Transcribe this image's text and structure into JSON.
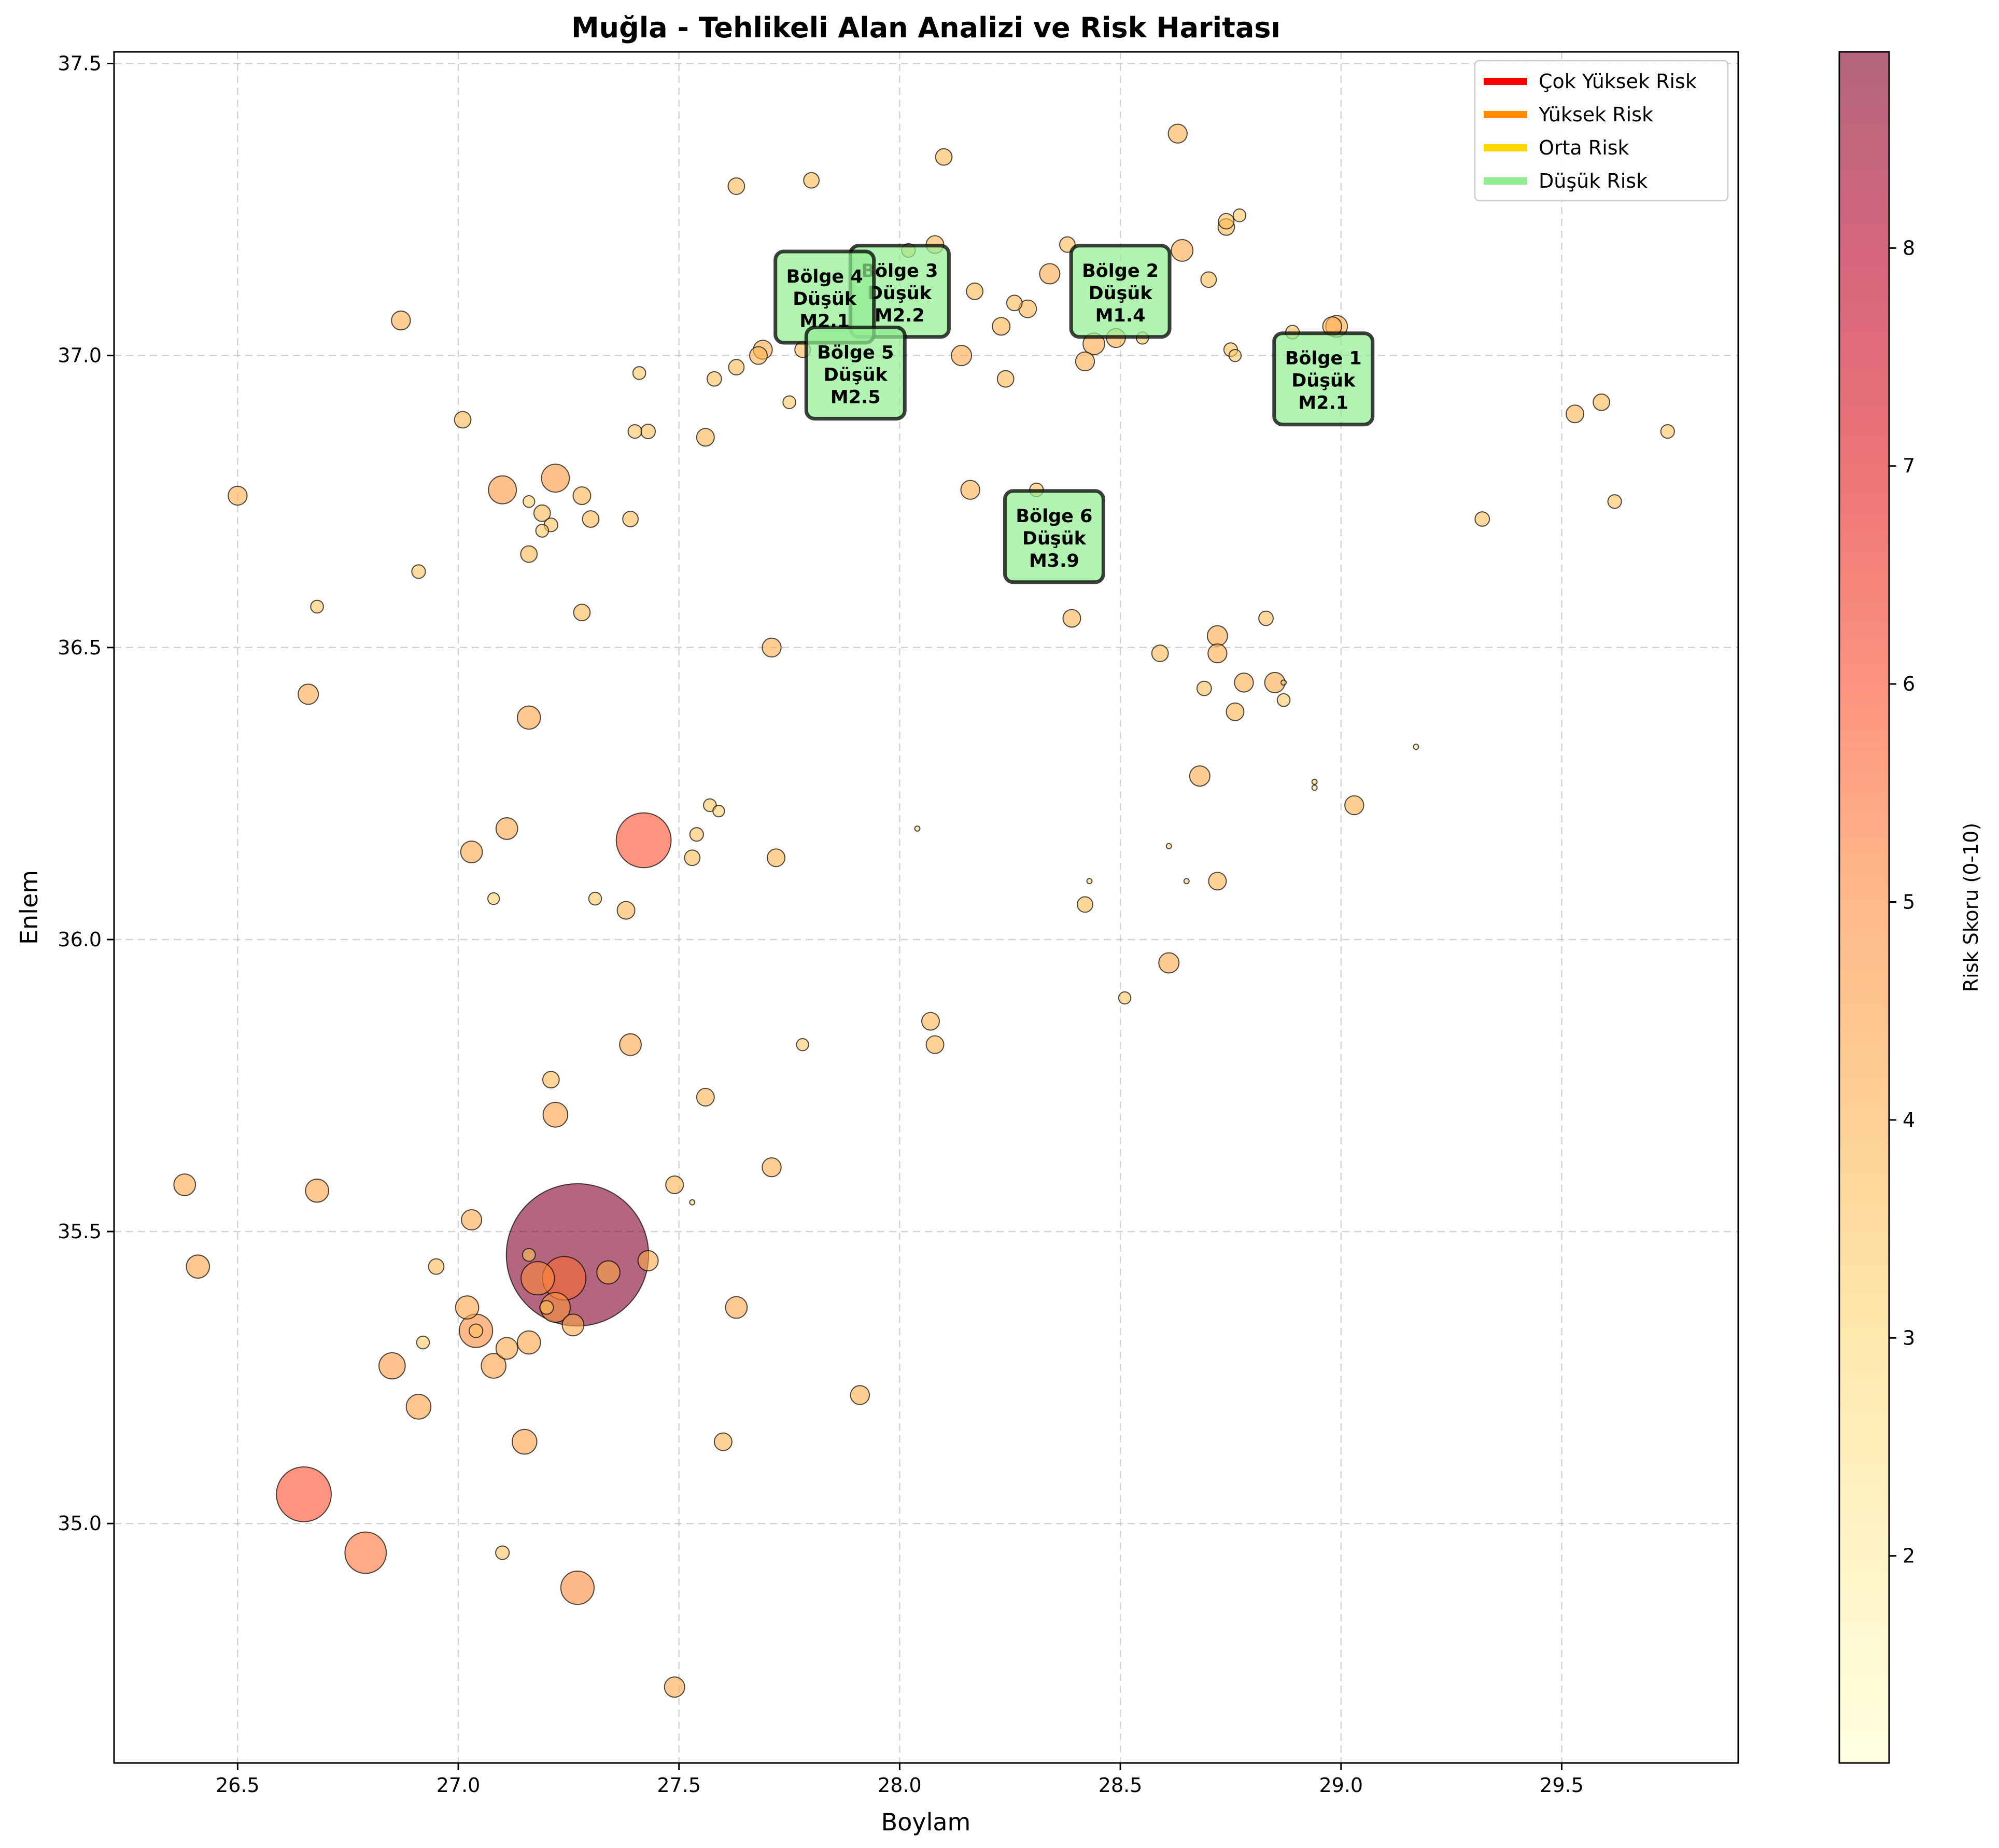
{
  "chart_data": {
    "type": "scatter",
    "title": "Muğla - Tehlikeli Alan Analizi ve Risk Haritası",
    "xlabel": "Boylam",
    "ylabel": "Enlem",
    "xlim": [
      26.22,
      29.9
    ],
    "ylim": [
      34.59,
      37.52
    ],
    "xticks": [
      26.5,
      27.0,
      27.5,
      28.0,
      28.5,
      29.0,
      29.5
    ],
    "xtick_labels": [
      "26.5",
      "27.0",
      "27.5",
      "28.0",
      "28.5",
      "29.0",
      "29.5"
    ],
    "yticks": [
      35.0,
      35.5,
      36.0,
      36.5,
      37.0,
      37.5
    ],
    "ytick_labels": [
      "35.0",
      "35.5",
      "36.0",
      "36.5",
      "37.0",
      "37.5"
    ],
    "grid": true,
    "point_size_encodes": "risk",
    "legend": {
      "position": "top-right",
      "entries": [
        {
          "label": "Çok Yüksek Risk",
          "color": "#ff0000"
        },
        {
          "label": "Yüksek Risk",
          "color": "#ff8c00"
        },
        {
          "label": "Orta Risk",
          "color": "#ffd700"
        },
        {
          "label": "Düşük Risk",
          "color": "#90ee90"
        }
      ]
    },
    "colorbar": {
      "label": "Risk Skoru (0-10)",
      "min": 1.05,
      "max": 8.9,
      "ticks": [
        2,
        3,
        4,
        5,
        6,
        7,
        8
      ],
      "tick_labels": [
        "2",
        "3",
        "4",
        "5",
        "6",
        "7",
        "8"
      ],
      "colormap": "YlOrRd"
    },
    "zones": [
      {
        "lines": [
          "Bölge 1",
          "Düşük",
          "M2.1"
        ],
        "x": 28.96,
        "y": 36.96
      },
      {
        "lines": [
          "Bölge 2",
          "Düşük",
          "M1.4"
        ],
        "x": 28.5,
        "y": 37.11
      },
      {
        "lines": [
          "Bölge 3",
          "Düşük",
          "M2.2"
        ],
        "x": 28.0,
        "y": 37.11
      },
      {
        "lines": [
          "Bölge 4",
          "Düşük",
          "M2.1"
        ],
        "x": 27.83,
        "y": 37.1
      },
      {
        "lines": [
          "Bölge 5",
          "Düşük",
          "M2.5"
        ],
        "x": 27.9,
        "y": 36.97
      },
      {
        "lines": [
          "Bölge 6",
          "Düşük",
          "M3.9"
        ],
        "x": 28.35,
        "y": 36.69
      }
    ],
    "points": [
      {
        "x": 27.27,
        "y": 35.46,
        "risk": 8.9
      },
      {
        "x": 27.42,
        "y": 36.17,
        "risk": 6.0
      },
      {
        "x": 26.65,
        "y": 35.05,
        "risk": 6.0
      },
      {
        "x": 27.24,
        "y": 35.42,
        "risk": 5.5
      },
      {
        "x": 26.79,
        "y": 34.95,
        "risk": 5.4
      },
      {
        "x": 27.04,
        "y": 35.33,
        "risk": 5.0
      },
      {
        "x": 27.18,
        "y": 35.42,
        "risk": 5.0
      },
      {
        "x": 27.27,
        "y": 34.89,
        "risk": 5.0
      },
      {
        "x": 27.1,
        "y": 36.77,
        "risk": 4.7
      },
      {
        "x": 27.22,
        "y": 35.37,
        "risk": 4.8
      },
      {
        "x": 27.22,
        "y": 36.79,
        "risk": 4.7
      },
      {
        "x": 27.15,
        "y": 35.14,
        "risk": 4.5
      },
      {
        "x": 26.91,
        "y": 35.2,
        "risk": 4.5
      },
      {
        "x": 26.85,
        "y": 35.27,
        "risk": 4.6
      },
      {
        "x": 27.16,
        "y": 35.31,
        "risk": 4.4
      },
      {
        "x": 27.11,
        "y": 35.3,
        "risk": 4.3
      },
      {
        "x": 27.08,
        "y": 35.27,
        "risk": 4.5
      },
      {
        "x": 27.26,
        "y": 35.34,
        "risk": 4.3
      },
      {
        "x": 27.34,
        "y": 35.43,
        "risk": 4.4
      },
      {
        "x": 27.02,
        "y": 35.37,
        "risk": 4.4
      },
      {
        "x": 27.22,
        "y": 35.7,
        "risk": 4.5
      },
      {
        "x": 26.41,
        "y": 35.44,
        "risk": 4.4
      },
      {
        "x": 26.68,
        "y": 35.57,
        "risk": 4.4
      },
      {
        "x": 26.38,
        "y": 35.58,
        "risk": 4.3
      },
      {
        "x": 27.03,
        "y": 35.52,
        "risk": 4.2
      },
      {
        "x": 27.43,
        "y": 35.45,
        "risk": 4.2
      },
      {
        "x": 27.63,
        "y": 35.37,
        "risk": 4.3
      },
      {
        "x": 27.49,
        "y": 34.72,
        "risk": 4.2
      },
      {
        "x": 27.6,
        "y": 35.14,
        "risk": 4.0
      },
      {
        "x": 27.91,
        "y": 35.22,
        "risk": 4.1
      },
      {
        "x": 27.16,
        "y": 36.38,
        "risk": 4.4
      },
      {
        "x": 27.39,
        "y": 35.82,
        "risk": 4.3
      },
      {
        "x": 27.56,
        "y": 35.73,
        "risk": 4.0
      },
      {
        "x": 27.49,
        "y": 35.58,
        "risk": 4.0
      },
      {
        "x": 27.71,
        "y": 35.61,
        "risk": 4.1
      },
      {
        "x": 28.08,
        "y": 35.82,
        "risk": 4.0
      },
      {
        "x": 28.07,
        "y": 35.86,
        "risk": 4.0
      },
      {
        "x": 28.61,
        "y": 35.96,
        "risk": 4.2
      },
      {
        "x": 28.51,
        "y": 35.9,
        "risk": 3.4
      },
      {
        "x": 27.21,
        "y": 35.76,
        "risk": 3.9
      },
      {
        "x": 27.2,
        "y": 35.37,
        "risk": 3.6
      },
      {
        "x": 26.95,
        "y": 35.44,
        "risk": 3.8
      },
      {
        "x": 26.92,
        "y": 35.31,
        "risk": 3.5
      },
      {
        "x": 27.04,
        "y": 35.33,
        "risk": 3.6
      },
      {
        "x": 27.16,
        "y": 35.46,
        "risk": 3.5
      },
      {
        "x": 27.53,
        "y": 35.55,
        "risk": 3.2
      },
      {
        "x": 27.1,
        "y": 34.95,
        "risk": 3.6
      },
      {
        "x": 27.78,
        "y": 35.82,
        "risk": 3.4
      },
      {
        "x": 26.91,
        "y": 36.63,
        "risk": 3.6
      },
      {
        "x": 27.16,
        "y": 36.75,
        "risk": 3.3
      },
      {
        "x": 26.68,
        "y": 36.57,
        "risk": 3.5
      },
      {
        "x": 26.66,
        "y": 36.42,
        "risk": 4.2
      },
      {
        "x": 26.5,
        "y": 36.76,
        "risk": 4.1
      },
      {
        "x": 26.87,
        "y": 37.06,
        "risk": 4.1
      },
      {
        "x": 27.03,
        "y": 36.15,
        "risk": 4.3
      },
      {
        "x": 27.11,
        "y": 36.19,
        "risk": 4.3
      },
      {
        "x": 27.08,
        "y": 36.07,
        "risk": 3.3
      },
      {
        "x": 27.31,
        "y": 36.07,
        "risk": 3.5
      },
      {
        "x": 27.38,
        "y": 36.05,
        "risk": 4.0
      },
      {
        "x": 27.53,
        "y": 36.14,
        "risk": 3.8
      },
      {
        "x": 27.54,
        "y": 36.18,
        "risk": 3.6
      },
      {
        "x": 27.57,
        "y": 36.23,
        "risk": 3.5
      },
      {
        "x": 27.59,
        "y": 36.22,
        "risk": 3.3
      },
      {
        "x": 27.72,
        "y": 36.14,
        "risk": 4.0
      },
      {
        "x": 28.04,
        "y": 36.19,
        "risk": 3.0
      },
      {
        "x": 28.43,
        "y": 36.1,
        "risk": 3.1
      },
      {
        "x": 28.42,
        "y": 36.06,
        "risk": 3.8
      },
      {
        "x": 28.65,
        "y": 36.1,
        "risk": 2.9
      },
      {
        "x": 28.61,
        "y": 36.16,
        "risk": 3.0
      },
      {
        "x": 28.72,
        "y": 36.1,
        "risk": 4.0
      },
      {
        "x": 28.68,
        "y": 36.28,
        "risk": 4.2
      },
      {
        "x": 28.94,
        "y": 36.26,
        "risk": 2.3
      },
      {
        "x": 28.94,
        "y": 36.27,
        "risk": 3.2
      },
      {
        "x": 29.03,
        "y": 36.23,
        "risk": 4.1
      },
      {
        "x": 29.17,
        "y": 36.33,
        "risk": 2.5
      },
      {
        "x": 27.71,
        "y": 36.5,
        "risk": 4.1
      },
      {
        "x": 27.28,
        "y": 36.56,
        "risk": 3.9
      },
      {
        "x": 27.16,
        "y": 36.66,
        "risk": 3.9
      },
      {
        "x": 27.19,
        "y": 36.7,
        "risk": 3.5
      },
      {
        "x": 27.21,
        "y": 36.71,
        "risk": 3.6
      },
      {
        "x": 27.19,
        "y": 36.73,
        "risk": 3.9
      },
      {
        "x": 27.3,
        "y": 36.72,
        "risk": 3.9
      },
      {
        "x": 27.28,
        "y": 36.76,
        "risk": 4.0
      },
      {
        "x": 27.39,
        "y": 36.72,
        "risk": 3.8
      },
      {
        "x": 27.01,
        "y": 36.89,
        "risk": 3.9
      },
      {
        "x": 27.4,
        "y": 36.87,
        "risk": 3.6
      },
      {
        "x": 27.43,
        "y": 36.87,
        "risk": 3.7
      },
      {
        "x": 27.41,
        "y": 36.97,
        "risk": 3.5
      },
      {
        "x": 27.56,
        "y": 36.86,
        "risk": 4.0
      },
      {
        "x": 27.58,
        "y": 36.96,
        "risk": 3.7
      },
      {
        "x": 27.63,
        "y": 36.98,
        "risk": 3.8
      },
      {
        "x": 27.68,
        "y": 37.0,
        "risk": 4.0
      },
      {
        "x": 27.69,
        "y": 37.01,
        "risk": 4.1
      },
      {
        "x": 27.78,
        "y": 37.01,
        "risk": 3.8
      },
      {
        "x": 27.75,
        "y": 36.92,
        "risk": 3.5
      },
      {
        "x": 27.63,
        "y": 37.29,
        "risk": 3.9
      },
      {
        "x": 27.8,
        "y": 37.3,
        "risk": 3.8
      },
      {
        "x": 28.02,
        "y": 37.18,
        "risk": 3.6
      },
      {
        "x": 28.08,
        "y": 37.19,
        "risk": 4.0
      },
      {
        "x": 28.1,
        "y": 37.34,
        "risk": 3.9
      },
      {
        "x": 28.17,
        "y": 37.11,
        "risk": 3.9
      },
      {
        "x": 28.14,
        "y": 37.0,
        "risk": 4.2
      },
      {
        "x": 28.24,
        "y": 36.96,
        "risk": 3.9
      },
      {
        "x": 28.23,
        "y": 37.05,
        "risk": 4.0
      },
      {
        "x": 28.26,
        "y": 37.09,
        "risk": 3.8
      },
      {
        "x": 28.29,
        "y": 37.08,
        "risk": 4.0
      },
      {
        "x": 28.16,
        "y": 36.77,
        "risk": 4.1
      },
      {
        "x": 28.31,
        "y": 36.77,
        "risk": 3.6
      },
      {
        "x": 28.39,
        "y": 36.55,
        "risk": 4.0
      },
      {
        "x": 28.34,
        "y": 37.14,
        "risk": 4.2
      },
      {
        "x": 28.38,
        "y": 37.19,
        "risk": 3.8
      },
      {
        "x": 28.42,
        "y": 36.99,
        "risk": 4.1
      },
      {
        "x": 28.44,
        "y": 37.02,
        "risk": 4.3
      },
      {
        "x": 28.49,
        "y": 37.03,
        "risk": 4.1
      },
      {
        "x": 28.55,
        "y": 37.03,
        "risk": 3.4
      },
      {
        "x": 28.59,
        "y": 36.49,
        "risk": 3.9
      },
      {
        "x": 28.63,
        "y": 37.38,
        "risk": 4.1
      },
      {
        "x": 28.64,
        "y": 37.18,
        "risk": 4.3
      },
      {
        "x": 28.7,
        "y": 37.13,
        "risk": 3.8
      },
      {
        "x": 28.74,
        "y": 37.23,
        "risk": 3.8
      },
      {
        "x": 28.74,
        "y": 37.22,
        "risk": 3.9
      },
      {
        "x": 28.77,
        "y": 37.24,
        "risk": 3.5
      },
      {
        "x": 28.75,
        "y": 37.01,
        "risk": 3.6
      },
      {
        "x": 28.76,
        "y": 37.0,
        "risk": 3.4
      },
      {
        "x": 28.72,
        "y": 36.52,
        "risk": 4.2
      },
      {
        "x": 28.72,
        "y": 36.49,
        "risk": 4.1
      },
      {
        "x": 28.83,
        "y": 36.55,
        "risk": 3.7
      },
      {
        "x": 28.69,
        "y": 36.43,
        "risk": 3.7
      },
      {
        "x": 28.76,
        "y": 36.39,
        "risk": 4.0
      },
      {
        "x": 28.78,
        "y": 36.44,
        "risk": 4.1
      },
      {
        "x": 28.85,
        "y": 36.44,
        "risk": 4.2
      },
      {
        "x": 28.87,
        "y": 36.44,
        "risk": 3.2
      },
      {
        "x": 28.87,
        "y": 36.41,
        "risk": 3.5
      },
      {
        "x": 28.89,
        "y": 37.04,
        "risk": 3.6
      },
      {
        "x": 28.98,
        "y": 37.05,
        "risk": 4.1
      },
      {
        "x": 28.99,
        "y": 37.05,
        "risk": 4.3
      },
      {
        "x": 29.32,
        "y": 36.72,
        "risk": 3.7
      },
      {
        "x": 29.53,
        "y": 36.9,
        "risk": 4.0
      },
      {
        "x": 29.59,
        "y": 36.92,
        "risk": 3.9
      },
      {
        "x": 29.62,
        "y": 36.75,
        "risk": 3.6
      },
      {
        "x": 29.74,
        "y": 36.87,
        "risk": 3.6
      }
    ]
  }
}
